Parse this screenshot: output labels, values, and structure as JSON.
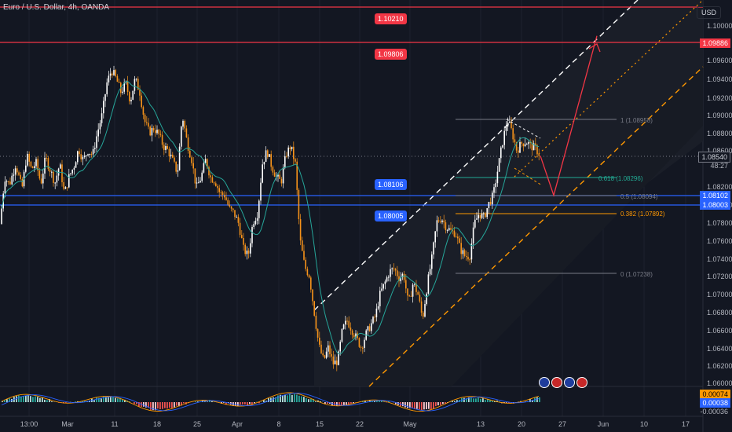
{
  "symbol": "Euro / U.S. Dollar, 4h, OANDA",
  "currency": "USD",
  "price_axis": [
    "1.10000",
    "1.09600",
    "1.09400",
    "1.09200",
    "1.09000",
    "1.08800",
    "1.08600",
    "1.08200",
    "1.08000",
    "1.07800",
    "1.07600",
    "1.07400",
    "1.07200",
    "1.07000",
    "1.06800",
    "1.06600",
    "1.06400",
    "1.06200",
    "1.06000"
  ],
  "date_axis": [
    "13:00",
    "Mar",
    "11",
    "18",
    "25",
    "Apr",
    "8",
    "15",
    "22",
    "May",
    "13",
    "20",
    "27",
    "Jun",
    "10",
    "17"
  ],
  "price_tags": {
    "top_line": "1.09886",
    "current": "1.08540",
    "countdown": "48:27",
    "blue1": "1.08102",
    "blue2": "1.08003"
  },
  "chart_labels": {
    "red_top": "1.10210",
    "red_mid": "1.09806",
    "blue_upper": "1.08106",
    "blue_lower": "1.08005"
  },
  "fib_levels": [
    {
      "label": "1 (1.08958)",
      "color": "#787b86"
    },
    {
      "label": "0.618 (1.08296)",
      "color": "#22ab94"
    },
    {
      "label": "0.5 (1.08094)",
      "color": "#787b86"
    },
    {
      "label": "0.382 (1.07892)",
      "color": "#ff9800"
    },
    {
      "label": "0 (1.07238)",
      "color": "#787b86"
    }
  ],
  "indicator_axis": [
    "0.00074",
    "0.00038",
    "-0.00036"
  ],
  "colors": {
    "bg": "#131722",
    "bull": "#ffffff",
    "bear": "#f7931a",
    "red": "#f23645",
    "blue": "#2962ff",
    "teal": "#26a69a",
    "orange": "#ff9800",
    "grid": "#1e222d"
  },
  "chart_data": {
    "type": "candlestick",
    "symbol": "EURUSD",
    "timeframe": "4h",
    "ylim": [
      1.06,
      1.103
    ],
    "close_path": [
      [
        0,
        1.0778
      ],
      [
        6,
        1.083
      ],
      [
        12,
        1.0822
      ],
      [
        20,
        1.0845
      ],
      [
        28,
        1.0817
      ],
      [
        34,
        1.0855
      ],
      [
        40,
        1.0839
      ],
      [
        46,
        1.0846
      ],
      [
        52,
        1.0823
      ],
      [
        58,
        1.0852
      ],
      [
        64,
        1.0838
      ],
      [
        70,
        1.0824
      ],
      [
        76,
        1.0845
      ],
      [
        82,
        1.0811
      ],
      [
        88,
        1.0831
      ],
      [
        94,
        1.0842
      ],
      [
        100,
        1.0862
      ],
      [
        106,
        1.0849
      ],
      [
        112,
        1.086
      ],
      [
        118,
        1.0855
      ],
      [
        124,
        1.088
      ],
      [
        130,
        1.09
      ],
      [
        136,
        1.0935
      ],
      [
        142,
        1.095
      ],
      [
        148,
        1.094
      ],
      [
        154,
        1.0925
      ],
      [
        160,
        1.0935
      ],
      [
        166,
        1.0915
      ],
      [
        172,
        1.094
      ],
      [
        178,
        1.0925
      ],
      [
        184,
        1.0893
      ],
      [
        190,
        1.088
      ],
      [
        196,
        1.0885
      ],
      [
        202,
        1.0878
      ],
      [
        208,
        1.0865
      ],
      [
        214,
        1.086
      ],
      [
        220,
        1.0848
      ],
      [
        226,
        1.0835
      ],
      [
        232,
        1.09
      ],
      [
        238,
        1.087
      ],
      [
        244,
        1.085
      ],
      [
        250,
        1.0818
      ],
      [
        256,
        1.083
      ],
      [
        262,
        1.085
      ],
      [
        268,
        1.083
      ],
      [
        274,
        1.0826
      ],
      [
        280,
        1.0812
      ],
      [
        286,
        1.081
      ],
      [
        292,
        1.0795
      ],
      [
        298,
        1.079
      ],
      [
        304,
        1.0778
      ],
      [
        310,
        1.075
      ],
      [
        316,
        1.0742
      ],
      [
        322,
        1.078
      ],
      [
        328,
        1.079
      ],
      [
        334,
        1.0845
      ],
      [
        340,
        1.086
      ],
      [
        346,
        1.0842
      ],
      [
        352,
        1.083
      ],
      [
        358,
        1.0825
      ],
      [
        364,
        1.0855
      ],
      [
        370,
        1.0865
      ],
      [
        376,
        1.0845
      ],
      [
        382,
        1.076
      ],
      [
        388,
        1.073
      ],
      [
        394,
        1.072
      ],
      [
        400,
        1.068
      ],
      [
        406,
        1.0642
      ],
      [
        412,
        1.0625
      ],
      [
        418,
        1.064
      ],
      [
        424,
        1.0622
      ],
      [
        430,
        1.0625
      ],
      [
        436,
        1.066
      ],
      [
        442,
        1.067
      ],
      [
        448,
        1.066
      ],
      [
        454,
        1.065
      ],
      [
        460,
        1.064
      ],
      [
        466,
        1.0655
      ],
      [
        472,
        1.0665
      ],
      [
        478,
        1.0675
      ],
      [
        484,
        1.07
      ],
      [
        490,
        1.0712
      ],
      [
        496,
        1.0725
      ],
      [
        502,
        1.0728
      ],
      [
        508,
        1.0718
      ],
      [
        514,
        1.0722
      ],
      [
        520,
        1.0688
      ],
      [
        526,
        1.0712
      ],
      [
        532,
        1.07
      ],
      [
        538,
        1.0672
      ],
      [
        544,
        1.071
      ],
      [
        550,
        1.074
      ],
      [
        556,
        1.078
      ],
      [
        562,
        1.0785
      ],
      [
        568,
        1.0775
      ],
      [
        574,
        1.077
      ],
      [
        580,
        1.0768
      ],
      [
        586,
        1.075
      ],
      [
        592,
        1.0742
      ],
      [
        598,
        1.0742
      ],
      [
        604,
        1.0778
      ],
      [
        610,
        1.079
      ],
      [
        616,
        1.0785
      ],
      [
        622,
        1.08
      ],
      [
        628,
        1.081
      ],
      [
        634,
        1.084
      ],
      [
        640,
        1.087
      ],
      [
        646,
        1.0895
      ],
      [
        652,
        1.088
      ],
      [
        658,
        1.086
      ],
      [
        664,
        1.0868
      ],
      [
        670,
        1.087
      ],
      [
        676,
        1.0865
      ],
      [
        682,
        1.0862
      ],
      [
        688,
        1.0854
      ]
    ],
    "projection": [
      [
        688,
        1.0854
      ],
      [
        705,
        1.081
      ],
      [
        760,
        1.0988
      ]
    ]
  }
}
